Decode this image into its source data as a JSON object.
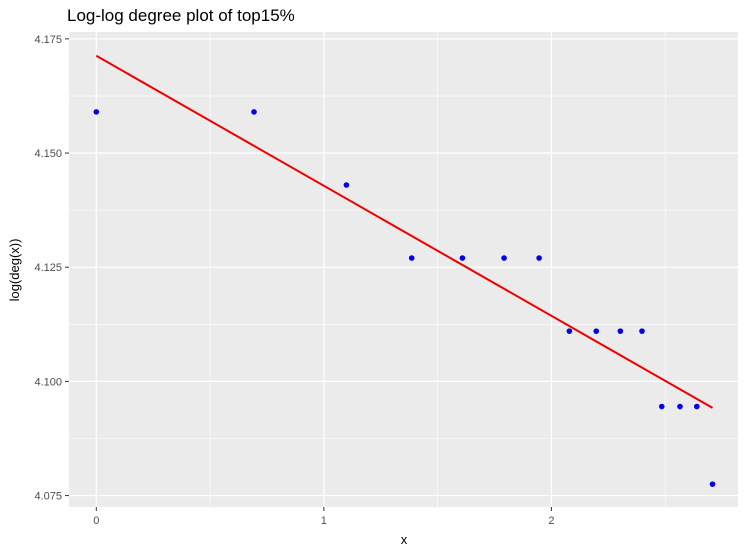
{
  "chart_data": {
    "type": "scatter",
    "title": "Log-log degree plot of top15%",
    "xlabel": "x",
    "ylabel": "log(deg(x))",
    "xlim": [
      -0.12,
      2.82
    ],
    "ylim": [
      4.0725,
      4.1765
    ],
    "x_ticks": [
      0,
      1,
      2
    ],
    "x_tick_labels": [
      "0",
      "1",
      "2"
    ],
    "y_ticks": [
      4.075,
      4.1,
      4.125,
      4.15,
      4.175
    ],
    "y_tick_labels": [
      "4.075",
      "4.100",
      "4.125",
      "4.150",
      "4.175"
    ],
    "grid": true,
    "legend": "none",
    "points": [
      {
        "x": 0.0,
        "y": 4.159
      },
      {
        "x": 0.693,
        "y": 4.159
      },
      {
        "x": 1.099,
        "y": 4.143
      },
      {
        "x": 1.386,
        "y": 4.127
      },
      {
        "x": 1.609,
        "y": 4.127
      },
      {
        "x": 1.792,
        "y": 4.127
      },
      {
        "x": 1.946,
        "y": 4.127
      },
      {
        "x": 2.079,
        "y": 4.111
      },
      {
        "x": 2.197,
        "y": 4.111
      },
      {
        "x": 2.303,
        "y": 4.111
      },
      {
        "x": 2.398,
        "y": 4.111
      },
      {
        "x": 2.485,
        "y": 4.0945
      },
      {
        "x": 2.565,
        "y": 4.0945
      },
      {
        "x": 2.639,
        "y": 4.0945
      },
      {
        "x": 2.708,
        "y": 4.0775
      }
    ],
    "fit_line": {
      "x": [
        0.0,
        2.708
      ],
      "y": [
        4.1713,
        4.0942
      ]
    },
    "point_color": "#0000ee",
    "line_color": "#ee0000",
    "panel_color": "#ebebeb",
    "grid_color": "#ffffff"
  }
}
